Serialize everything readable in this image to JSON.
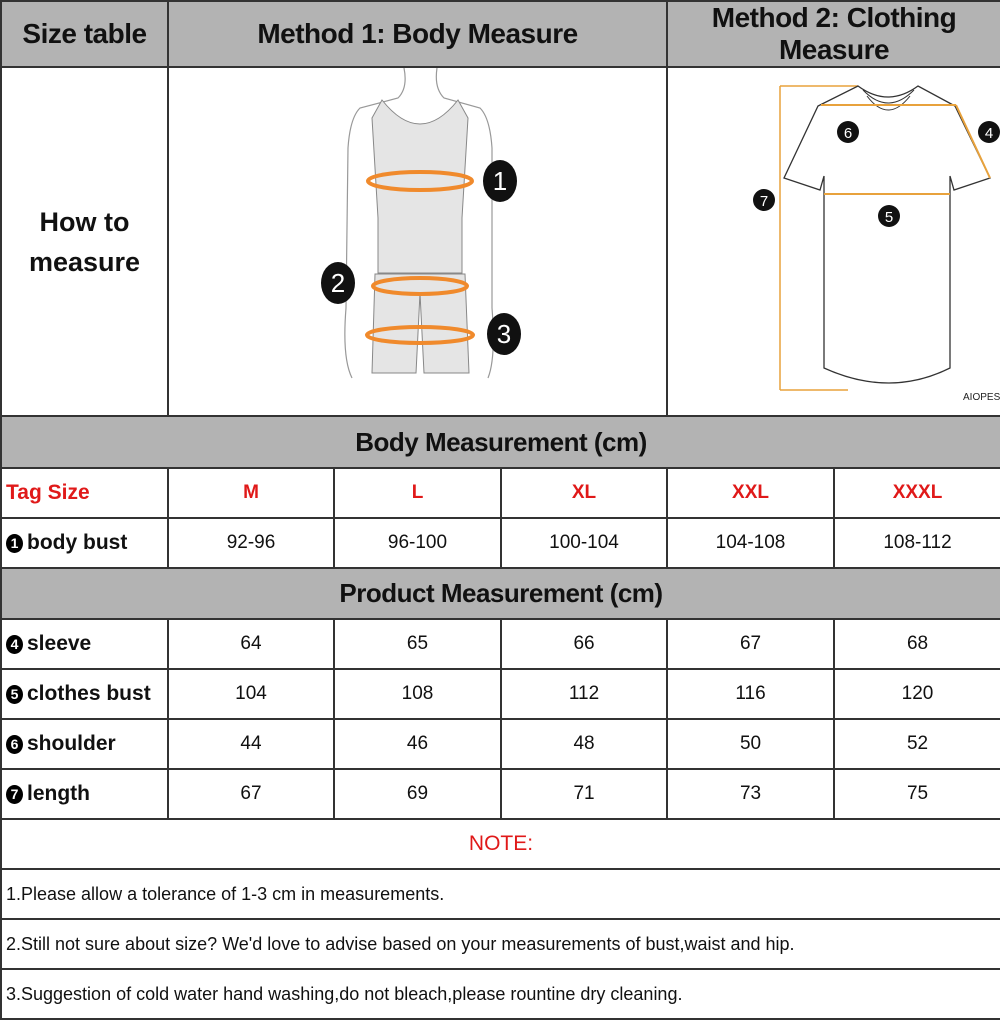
{
  "header": {
    "size_table": "Size table",
    "method1": "Method 1: Body  Measure",
    "method2": "Method 2: Clothing Measure"
  },
  "how_to": {
    "line1": "How to",
    "line2": "measure"
  },
  "body_diagram": {
    "markers": [
      "1",
      "2",
      "3"
    ],
    "accent": "#f08a2c"
  },
  "shirt_diagram": {
    "markers": [
      "4",
      "5",
      "6",
      "7"
    ],
    "brand": "AIOPESON",
    "accent": "#e8a23c"
  },
  "body_section": {
    "title": "Body Measurement (cm)",
    "tag_label": "Tag Size",
    "sizes": [
      "M",
      "L",
      "XL",
      "XXL",
      "XXXL"
    ],
    "rows": [
      {
        "marker": "1",
        "label": "body bust",
        "values": [
          "92-96",
          "96-100",
          "100-104",
          "104-108",
          "108-112"
        ]
      }
    ]
  },
  "product_section": {
    "title": "Product Measurement (cm)",
    "rows": [
      {
        "marker": "4",
        "label": "sleeve",
        "values": [
          "64",
          "65",
          "66",
          "67",
          "68"
        ]
      },
      {
        "marker": "5",
        "label": "clothes bust",
        "values": [
          "104",
          "108",
          "112",
          "116",
          "120"
        ]
      },
      {
        "marker": "6",
        "label": "shoulder",
        "values": [
          "44",
          "46",
          "48",
          "50",
          "52"
        ]
      },
      {
        "marker": "7",
        "label": "length",
        "values": [
          "67",
          "69",
          "71",
          "73",
          "75"
        ]
      }
    ]
  },
  "notes": {
    "title": "NOTE:",
    "items": [
      "1.Please allow a tolerance of 1-3 cm in measurements.",
      "2.Still not sure about size? We'd love to advise based on your measurements of bust,waist and hip.",
      "3.Suggestion of cold water hand washing,do not bleach,please rountine dry cleaning."
    ]
  },
  "colors": {
    "header_bg": "#b3b3b3",
    "size_red": "#e01919",
    "border": "#333333"
  }
}
